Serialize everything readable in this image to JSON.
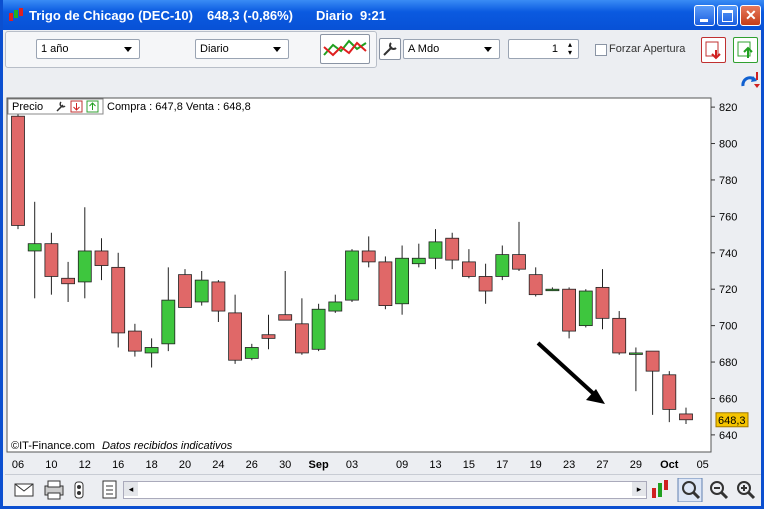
{
  "window": {
    "title": "Trigo de Chicago (DEC-10)",
    "quote": "648,3 (-0,86%)",
    "period": "Diario",
    "time": "9:21"
  },
  "toolbar": {
    "range": "1 año",
    "interval": "Diario",
    "mode": "A Mdo",
    "count": "1",
    "force_open": "Forzar Apertura"
  },
  "panel": {
    "name": "Precio",
    "bid_ask": "Compra : 647,8 Venta : 648,8",
    "copyright": "©IT-Finance.com",
    "notice": "Datos recibidos indicativos"
  },
  "chart_data": {
    "type": "candlestick",
    "categories": [
      "06",
      null,
      "10",
      null,
      "12",
      null,
      "16",
      null,
      "18",
      null,
      "20",
      null,
      "24",
      null,
      "26",
      null,
      "30",
      null,
      "Sep",
      null,
      "03",
      null,
      null,
      "09",
      null,
      "13",
      null,
      "15",
      null,
      "17",
      null,
      "19",
      null,
      "23",
      null,
      "27",
      null,
      "29",
      null,
      "Oct",
      null,
      "05"
    ],
    "open": [
      815,
      741,
      745,
      726,
      724,
      741,
      732,
      697,
      685,
      690,
      728,
      713,
      724,
      707,
      682,
      695,
      706,
      701,
      687,
      708,
      714,
      741,
      735,
      712,
      734,
      737,
      748,
      735,
      727,
      727,
      739,
      728,
      720,
      720,
      700,
      721,
      704,
      685,
      686,
      673,
      651.5,
      null
    ],
    "high": [
      816,
      768,
      751,
      735,
      765,
      748,
      740,
      701,
      693,
      732,
      731,
      730,
      725,
      717,
      690,
      706,
      730,
      715,
      712,
      717,
      742,
      749,
      738,
      744,
      745,
      753,
      751,
      742,
      734,
      744,
      757,
      732,
      721,
      721,
      720,
      731,
      708,
      688,
      686,
      675,
      655,
      null
    ],
    "low": [
      753,
      715,
      717,
      713,
      715,
      725,
      688,
      683,
      677,
      686,
      710,
      711,
      702,
      679,
      681,
      687,
      703,
      684,
      686,
      707,
      713,
      732,
      709,
      706,
      732,
      731,
      731,
      726,
      712,
      725,
      730,
      716,
      719,
      693,
      699,
      698,
      684,
      664,
      651,
      647,
      646,
      null
    ],
    "close": [
      755,
      745,
      727,
      723,
      741,
      733,
      696,
      686,
      688,
      714,
      710,
      725,
      708,
      681,
      688,
      693,
      703,
      685,
      709,
      713,
      741,
      735,
      711,
      737,
      737,
      746,
      736,
      727,
      719,
      739,
      731,
      717,
      720,
      697,
      719,
      704,
      685,
      685,
      675,
      654,
      648.3,
      null
    ],
    "up_color": "#3ec63e",
    "down_color": "#e06868",
    "ylim": [
      630.6,
      825
    ],
    "yticks": [
      640,
      660,
      680,
      700,
      720,
      740,
      760,
      780,
      800,
      820
    ],
    "last_price": {
      "value": 648.3,
      "label": "648,3"
    }
  }
}
